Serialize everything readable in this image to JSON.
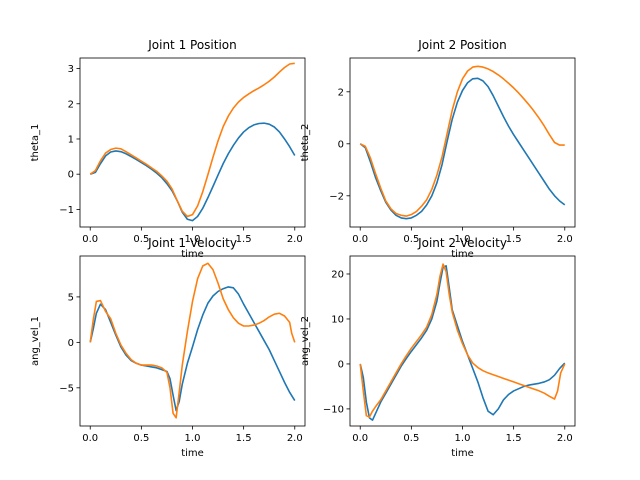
{
  "chart_data": [
    {
      "type": "line",
      "title": "Joint 1 Position",
      "xlabel": "time",
      "ylabel": "theta_1",
      "xlim": [
        -0.1,
        2.1
      ],
      "ylim": [
        -1.5,
        3.3
      ],
      "xticks": [
        0.0,
        0.5,
        1.0,
        1.5,
        2.0
      ],
      "xtick_labels": [
        "0.0",
        "0.5",
        "1.0",
        "1.5",
        "2.0"
      ],
      "yticks": [
        -1,
        0,
        1,
        2,
        3
      ],
      "ytick_labels": [
        "−1",
        "0",
        "1",
        "2",
        "3"
      ],
      "series": [
        {
          "color": "#1f77b4",
          "x": [
            0.0,
            0.05,
            0.1,
            0.15,
            0.2,
            0.25,
            0.3,
            0.35,
            0.4,
            0.45,
            0.5,
            0.55,
            0.6,
            0.65,
            0.7,
            0.75,
            0.8,
            0.85,
            0.9,
            0.95,
            1.0,
            1.05,
            1.1,
            1.15,
            1.2,
            1.25,
            1.3,
            1.35,
            1.4,
            1.45,
            1.5,
            1.55,
            1.6,
            1.65,
            1.7,
            1.75,
            1.8,
            1.85,
            1.9,
            1.95,
            2.0
          ],
          "y": [
            0.0,
            0.05,
            0.3,
            0.52,
            0.63,
            0.66,
            0.64,
            0.58,
            0.5,
            0.42,
            0.33,
            0.24,
            0.14,
            0.03,
            -0.1,
            -0.27,
            -0.47,
            -0.75,
            -1.08,
            -1.28,
            -1.32,
            -1.2,
            -0.97,
            -0.67,
            -0.35,
            -0.02,
            0.3,
            0.58,
            0.82,
            1.03,
            1.2,
            1.32,
            1.4,
            1.44,
            1.45,
            1.42,
            1.34,
            1.2,
            1.0,
            0.78,
            0.53
          ]
        },
        {
          "color": "#ff7f0e",
          "x": [
            0.0,
            0.05,
            0.1,
            0.15,
            0.2,
            0.25,
            0.3,
            0.35,
            0.4,
            0.45,
            0.5,
            0.55,
            0.6,
            0.65,
            0.7,
            0.75,
            0.8,
            0.85,
            0.9,
            0.95,
            1.0,
            1.05,
            1.1,
            1.15,
            1.2,
            1.25,
            1.3,
            1.35,
            1.4,
            1.45,
            1.5,
            1.55,
            1.6,
            1.65,
            1.7,
            1.75,
            1.8,
            1.85,
            1.9,
            1.95,
            2.0
          ],
          "y": [
            0.0,
            0.1,
            0.38,
            0.6,
            0.7,
            0.74,
            0.72,
            0.64,
            0.55,
            0.46,
            0.37,
            0.28,
            0.18,
            0.08,
            -0.05,
            -0.2,
            -0.42,
            -0.75,
            -1.05,
            -1.2,
            -1.15,
            -0.9,
            -0.5,
            -0.02,
            0.48,
            0.95,
            1.35,
            1.65,
            1.88,
            2.05,
            2.18,
            2.28,
            2.37,
            2.45,
            2.54,
            2.64,
            2.76,
            2.9,
            3.03,
            3.13,
            3.15
          ]
        }
      ]
    },
    {
      "type": "line",
      "title": "Joint 2 Position",
      "xlabel": "time",
      "ylabel": "theta_2",
      "xlim": [
        -0.1,
        2.1
      ],
      "ylim": [
        -3.2,
        3.3
      ],
      "xticks": [
        0.0,
        0.5,
        1.0,
        1.5,
        2.0
      ],
      "xtick_labels": [
        "0.0",
        "0.5",
        "1.0",
        "1.5",
        "2.0"
      ],
      "yticks": [
        -2,
        0,
        2
      ],
      "ytick_labels": [
        "−2",
        "0",
        "2"
      ],
      "series": [
        {
          "color": "#1f77b4",
          "x": [
            0.0,
            0.05,
            0.1,
            0.15,
            0.2,
            0.25,
            0.3,
            0.35,
            0.4,
            0.45,
            0.5,
            0.55,
            0.6,
            0.65,
            0.7,
            0.75,
            0.8,
            0.85,
            0.9,
            0.95,
            1.0,
            1.05,
            1.1,
            1.15,
            1.2,
            1.25,
            1.3,
            1.35,
            1.4,
            1.45,
            1.5,
            1.55,
            1.6,
            1.65,
            1.7,
            1.75,
            1.8,
            1.85,
            1.9,
            1.95,
            2.0
          ],
          "y": [
            0.0,
            -0.15,
            -0.7,
            -1.3,
            -1.8,
            -2.25,
            -2.55,
            -2.75,
            -2.85,
            -2.88,
            -2.85,
            -2.75,
            -2.6,
            -2.35,
            -2.0,
            -1.5,
            -0.8,
            0.1,
            0.95,
            1.6,
            2.05,
            2.35,
            2.5,
            2.52,
            2.42,
            2.2,
            1.85,
            1.45,
            1.05,
            0.68,
            0.35,
            0.05,
            -0.25,
            -0.55,
            -0.85,
            -1.15,
            -1.45,
            -1.75,
            -2.0,
            -2.2,
            -2.35
          ]
        },
        {
          "color": "#ff7f0e",
          "x": [
            0.0,
            0.05,
            0.1,
            0.15,
            0.2,
            0.25,
            0.3,
            0.35,
            0.4,
            0.45,
            0.5,
            0.55,
            0.6,
            0.65,
            0.7,
            0.75,
            0.8,
            0.85,
            0.9,
            0.95,
            1.0,
            1.05,
            1.1,
            1.15,
            1.2,
            1.25,
            1.3,
            1.35,
            1.4,
            1.45,
            1.5,
            1.55,
            1.6,
            1.65,
            1.7,
            1.75,
            1.8,
            1.85,
            1.9,
            1.95,
            2.0
          ],
          "y": [
            0.0,
            -0.1,
            -0.55,
            -1.15,
            -1.7,
            -2.2,
            -2.5,
            -2.68,
            -2.75,
            -2.78,
            -2.72,
            -2.6,
            -2.4,
            -2.15,
            -1.75,
            -1.2,
            -0.5,
            0.4,
            1.3,
            2.0,
            2.5,
            2.8,
            2.95,
            2.98,
            2.95,
            2.88,
            2.78,
            2.65,
            2.5,
            2.33,
            2.15,
            1.95,
            1.73,
            1.5,
            1.25,
            0.98,
            0.68,
            0.35,
            0.05,
            -0.05,
            -0.05
          ]
        }
      ]
    },
    {
      "type": "line",
      "title": "Joint 1 Velocity",
      "xlabel": "time",
      "ylabel": "ang_vel_1",
      "xlim": [
        -0.1,
        2.1
      ],
      "ylim": [
        -9.2,
        9.5
      ],
      "xticks": [
        0.0,
        0.5,
        1.0,
        1.5,
        2.0
      ],
      "xtick_labels": [
        "0.0",
        "0.5",
        "1.0",
        "1.5",
        "2.0"
      ],
      "yticks": [
        -5,
        0,
        5
      ],
      "ytick_labels": [
        "−5",
        "0",
        "5"
      ],
      "series": [
        {
          "color": "#1f77b4",
          "x": [
            0.0,
            0.03,
            0.06,
            0.1,
            0.15,
            0.2,
            0.25,
            0.3,
            0.35,
            0.4,
            0.45,
            0.5,
            0.55,
            0.6,
            0.65,
            0.7,
            0.75,
            0.78,
            0.81,
            0.84,
            0.87,
            0.9,
            0.95,
            1.0,
            1.05,
            1.1,
            1.15,
            1.2,
            1.25,
            1.3,
            1.35,
            1.4,
            1.45,
            1.5,
            1.55,
            1.6,
            1.65,
            1.7,
            1.75,
            1.8,
            1.85,
            1.9,
            1.95,
            2.0
          ],
          "y": [
            0.0,
            1.5,
            3.2,
            4.2,
            3.6,
            2.2,
            0.8,
            -0.5,
            -1.4,
            -2.0,
            -2.3,
            -2.5,
            -2.6,
            -2.7,
            -2.8,
            -3.0,
            -3.2,
            -4.0,
            -5.8,
            -7.5,
            -6.5,
            -4.6,
            -2.3,
            -0.5,
            1.4,
            3.0,
            4.3,
            5.1,
            5.6,
            5.9,
            6.1,
            6.0,
            5.3,
            4.2,
            3.2,
            2.2,
            1.2,
            0.2,
            -0.8,
            -2.0,
            -3.2,
            -4.4,
            -5.5,
            -6.4
          ]
        },
        {
          "color": "#ff7f0e",
          "x": [
            0.0,
            0.03,
            0.06,
            0.1,
            0.15,
            0.2,
            0.25,
            0.3,
            0.35,
            0.4,
            0.45,
            0.5,
            0.55,
            0.6,
            0.65,
            0.7,
            0.75,
            0.78,
            0.81,
            0.84,
            0.87,
            0.9,
            0.95,
            1.0,
            1.05,
            1.1,
            1.15,
            1.2,
            1.25,
            1.3,
            1.35,
            1.4,
            1.45,
            1.5,
            1.55,
            1.6,
            1.65,
            1.7,
            1.75,
            1.8,
            1.85,
            1.9,
            1.95,
            1.97,
            2.0
          ],
          "y": [
            0.0,
            2.5,
            4.5,
            4.6,
            3.4,
            2.6,
            1.0,
            -0.3,
            -1.2,
            -1.9,
            -2.3,
            -2.5,
            -2.5,
            -2.5,
            -2.6,
            -2.8,
            -3.3,
            -5.0,
            -7.8,
            -8.3,
            -5.5,
            -2.5,
            1.2,
            4.5,
            7.0,
            8.4,
            8.7,
            8.0,
            6.5,
            4.8,
            3.6,
            2.7,
            2.1,
            1.8,
            1.8,
            1.9,
            2.1,
            2.4,
            2.8,
            3.1,
            3.2,
            2.9,
            2.2,
            1.0,
            0.0
          ]
        }
      ]
    },
    {
      "type": "line",
      "title": "Joint 2 Velocity",
      "xlabel": "time",
      "ylabel": "ang_vel_2",
      "xlim": [
        -0.1,
        2.1
      ],
      "ylim": [
        -13.8,
        24.0
      ],
      "xticks": [
        0.0,
        0.5,
        1.0,
        1.5,
        2.0
      ],
      "xtick_labels": [
        "0.0",
        "0.5",
        "1.0",
        "1.5",
        "2.0"
      ],
      "yticks": [
        -10,
        0,
        10,
        20
      ],
      "ytick_labels": [
        "−10",
        "0",
        "10",
        "20"
      ],
      "series": [
        {
          "color": "#1f77b4",
          "x": [
            0.0,
            0.03,
            0.06,
            0.09,
            0.12,
            0.15,
            0.2,
            0.25,
            0.3,
            0.35,
            0.4,
            0.45,
            0.5,
            0.55,
            0.6,
            0.65,
            0.7,
            0.75,
            0.78,
            0.81,
            0.84,
            0.87,
            0.9,
            0.95,
            1.0,
            1.05,
            1.1,
            1.15,
            1.2,
            1.25,
            1.3,
            1.35,
            1.4,
            1.45,
            1.5,
            1.55,
            1.6,
            1.65,
            1.7,
            1.75,
            1.8,
            1.85,
            1.9,
            1.95,
            2.0
          ],
          "y": [
            0.0,
            -3.0,
            -8.5,
            -12.0,
            -12.5,
            -11.0,
            -8.5,
            -6.5,
            -4.5,
            -2.5,
            -0.5,
            1.2,
            2.8,
            4.3,
            5.8,
            7.5,
            10.0,
            14.0,
            18.0,
            21.5,
            21.8,
            17.0,
            12.0,
            8.5,
            5.0,
            2.0,
            -1.0,
            -4.0,
            -7.5,
            -10.5,
            -11.3,
            -10.0,
            -8.0,
            -6.8,
            -6.0,
            -5.5,
            -5.0,
            -4.7,
            -4.5,
            -4.3,
            -4.0,
            -3.5,
            -2.5,
            -1.0,
            0.2
          ]
        },
        {
          "color": "#ff7f0e",
          "x": [
            0.0,
            0.03,
            0.06,
            0.09,
            0.12,
            0.15,
            0.2,
            0.25,
            0.3,
            0.35,
            0.4,
            0.45,
            0.5,
            0.55,
            0.6,
            0.65,
            0.7,
            0.75,
            0.78,
            0.81,
            0.84,
            0.87,
            0.9,
            0.95,
            1.0,
            1.05,
            1.1,
            1.15,
            1.2,
            1.25,
            1.3,
            1.35,
            1.4,
            1.45,
            1.5,
            1.55,
            1.6,
            1.65,
            1.7,
            1.75,
            1.8,
            1.85,
            1.9,
            1.93,
            1.96,
            2.0
          ],
          "y": [
            0.0,
            -6.0,
            -11.5,
            -11.8,
            -10.5,
            -9.5,
            -8.0,
            -6.0,
            -4.0,
            -2.0,
            0.0,
            1.8,
            3.5,
            5.0,
            6.5,
            8.2,
            11.0,
            15.5,
            19.5,
            22.2,
            20.5,
            15.5,
            11.5,
            7.5,
            4.5,
            2.0,
            0.2,
            -0.8,
            -1.5,
            -2.0,
            -2.4,
            -2.8,
            -3.2,
            -3.6,
            -4.0,
            -4.4,
            -4.8,
            -5.2,
            -5.6,
            -6.0,
            -6.5,
            -7.2,
            -7.8,
            -6.0,
            -2.0,
            0.0
          ]
        }
      ]
    }
  ]
}
